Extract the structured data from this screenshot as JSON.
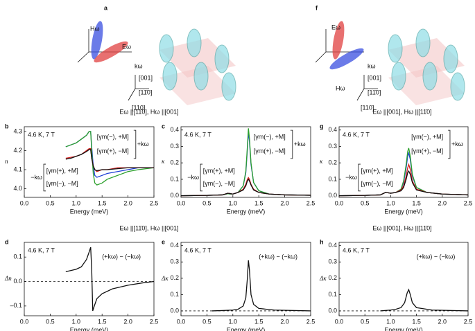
{
  "headers": [
    "Eω ||[11̄0], Hω ||[001]",
    "Eω ||[001], Hω ||[11̄0]",
    "Eω ||[11̄0], Hω ||[001]",
    "Eω ||[001], Hω ||[11̄0]"
  ],
  "diagrams": [
    {
      "panel": "a",
      "labels": [
        "Hω",
        "Eω",
        "kω",
        "[001]",
        "[11̄0]",
        "[110]"
      ]
    },
    {
      "panel": "f",
      "labels": [
        "Eω",
        "Hω",
        "kω",
        "[001]",
        "[11̄0]",
        "[110]"
      ]
    }
  ],
  "chart_data": [
    {
      "type": "line",
      "panel": "b",
      "ylabel": "n",
      "xlabel": "Energy (meV)",
      "annotations": [
        "4.6 K, 7 T",
        "+kω",
        "−kω"
      ],
      "xlim": [
        0,
        2.5
      ],
      "ylim": [
        3.955,
        4.325
      ],
      "xticks": [
        {
          "value": 0,
          "label": "0.0"
        },
        0.5,
        {
          "value": 1,
          "label": "1.0"
        },
        1.5,
        {
          "value": 2,
          "label": "2.0"
        },
        2.5
      ],
      "yticks": [
        {
          "value": 4,
          "label": "4.0"
        },
        4.1,
        4.2,
        4.3
      ],
      "x": [
        0.8,
        0.9,
        1.0,
        1.1,
        1.2,
        1.25,
        1.28,
        1.3,
        1.33,
        1.36,
        1.4,
        1.5,
        1.6,
        1.8,
        2.0,
        2.2,
        2.5
      ],
      "series": [
        {
          "name": "[γm(−), +M]",
          "color": "#1f3fd6",
          "values": [
            4.22,
            4.23,
            4.24,
            4.26,
            4.28,
            4.3,
            4.3,
            4.22,
            4.12,
            4.07,
            4.06,
            4.07,
            4.08,
            4.09,
            4.1,
            4.11,
            4.11
          ]
        },
        {
          "name": "[γm(+), −M]",
          "color": "#2ca02c",
          "values": [
            4.22,
            4.23,
            4.24,
            4.26,
            4.28,
            4.3,
            4.3,
            4.2,
            4.08,
            4.03,
            4.02,
            4.03,
            4.05,
            4.07,
            4.09,
            4.1,
            4.11
          ]
        },
        {
          "name": "[γm(+), +M]",
          "color": "#d62020",
          "values": [
            4.16,
            4.165,
            4.17,
            4.18,
            4.2,
            4.21,
            4.21,
            4.16,
            4.12,
            4.1,
            4.09,
            4.1,
            4.1,
            4.11,
            4.11,
            4.11,
            4.11
          ]
        },
        {
          "name": "[γm(−), −M]",
          "color": "#111111",
          "values": [
            4.155,
            4.16,
            4.17,
            4.18,
            4.195,
            4.205,
            4.205,
            4.16,
            4.12,
            4.1,
            4.095,
            4.1,
            4.1,
            4.105,
            4.11,
            4.11,
            4.11
          ]
        }
      ]
    },
    {
      "type": "line",
      "panel": "c",
      "ylabel": "κ",
      "xlabel": "Energy (meV)",
      "annotations": [
        "4.6 K, 7 T",
        "+kω",
        "−kω"
      ],
      "xlim": [
        0,
        2.5
      ],
      "ylim": [
        -0.01,
        0.42
      ],
      "xticks": [
        {
          "value": 0,
          "label": "0.0"
        },
        0.5,
        {
          "value": 1,
          "label": "1.0"
        },
        1.5,
        {
          "value": 2,
          "label": "2.0"
        },
        2.5
      ],
      "yticks": [
        {
          "value": 0,
          "label": "0.0"
        },
        0.1,
        0.2,
        0.3,
        0.4
      ],
      "x": [
        0,
        0.5,
        0.8,
        0.9,
        0.95,
        1.0,
        1.1,
        1.2,
        1.25,
        1.28,
        1.3,
        1.32,
        1.35,
        1.4,
        1.5,
        1.7,
        2.0,
        2.5
      ],
      "series": [
        {
          "name": "[γm(−), +M]",
          "color": "#1f3fd6",
          "values": [
            0,
            0.002,
            0.005,
            0.012,
            0.01,
            0.01,
            0.02,
            0.06,
            0.14,
            0.28,
            0.39,
            0.33,
            0.19,
            0.08,
            0.03,
            0.01,
            0.005,
            0.003
          ]
        },
        {
          "name": "[γm(+), −M]",
          "color": "#2ca02c",
          "values": [
            0,
            0.002,
            0.005,
            0.012,
            0.01,
            0.01,
            0.02,
            0.06,
            0.15,
            0.3,
            0.41,
            0.35,
            0.2,
            0.08,
            0.03,
            0.01,
            0.005,
            0.003
          ]
        },
        {
          "name": "[γm(+), +M]",
          "color": "#d62020",
          "values": [
            0,
            0.002,
            0.005,
            0.015,
            0.013,
            0.01,
            0.02,
            0.04,
            0.07,
            0.1,
            0.11,
            0.1,
            0.07,
            0.04,
            0.02,
            0.01,
            0.005,
            0.003
          ]
        },
        {
          "name": "[γm(−), −M]",
          "color": "#111111",
          "values": [
            0,
            0.002,
            0.005,
            0.015,
            0.013,
            0.01,
            0.02,
            0.035,
            0.06,
            0.09,
            0.1,
            0.09,
            0.065,
            0.035,
            0.02,
            0.01,
            0.005,
            0.003
          ]
        }
      ]
    },
    {
      "type": "line",
      "panel": "g",
      "ylabel": "κ",
      "xlabel": "Energy (meV)",
      "annotations": [
        "4.6 K, 7 T",
        "+kω",
        "−kω"
      ],
      "xlim": [
        0,
        2.5
      ],
      "ylim": [
        -0.01,
        0.42
      ],
      "xticks": [
        {
          "value": 0,
          "label": "0.0"
        },
        0.5,
        {
          "value": 1,
          "label": "1.0"
        },
        1.5,
        {
          "value": 2,
          "label": "2.0"
        },
        2.5
      ],
      "yticks": [
        {
          "value": 0,
          "label": "0.0"
        },
        0.1,
        0.2,
        0.3,
        0.4
      ],
      "x": [
        0,
        0.5,
        0.8,
        0.9,
        0.95,
        1.0,
        1.1,
        1.2,
        1.25,
        1.3,
        1.33,
        1.35,
        1.38,
        1.42,
        1.5,
        1.7,
        2.0,
        2.5
      ],
      "series": [
        {
          "name": "[γm(−), +M]",
          "color": "#1f3fd6",
          "values": [
            0,
            0.002,
            0.005,
            0.02,
            0.018,
            0.015,
            0.02,
            0.04,
            0.08,
            0.17,
            0.24,
            0.26,
            0.22,
            0.12,
            0.05,
            0.02,
            0.01,
            0.005
          ]
        },
        {
          "name": "[γm(+), −M]",
          "color": "#2ca02c",
          "values": [
            0,
            0.002,
            0.005,
            0.02,
            0.018,
            0.015,
            0.02,
            0.04,
            0.09,
            0.19,
            0.27,
            0.29,
            0.24,
            0.13,
            0.05,
            0.02,
            0.01,
            0.005
          ]
        },
        {
          "name": "[γm(+), +M]",
          "color": "#d62020",
          "values": [
            0,
            0.002,
            0.005,
            0.02,
            0.018,
            0.015,
            0.02,
            0.035,
            0.06,
            0.12,
            0.17,
            0.19,
            0.16,
            0.09,
            0.04,
            0.02,
            0.01,
            0.005
          ]
        },
        {
          "name": "[γm(−), −M]",
          "color": "#111111",
          "values": [
            0,
            0.002,
            0.005,
            0.02,
            0.018,
            0.015,
            0.02,
            0.03,
            0.05,
            0.1,
            0.14,
            0.15,
            0.13,
            0.08,
            0.035,
            0.02,
            0.01,
            0.005
          ]
        }
      ]
    },
    {
      "type": "line",
      "panel": "d",
      "ylabel": "Δn",
      "xlabel": "Energy (meV)",
      "annotations": [
        "4.6 K, 7 T",
        "(+kω) − (−kω)"
      ],
      "xlim": [
        0,
        2.5
      ],
      "ylim": [
        -0.14,
        0.16
      ],
      "hline": 0,
      "xticks": [
        {
          "value": 0,
          "label": "0.0"
        },
        0.5,
        {
          "value": 1,
          "label": "1.0"
        },
        1.5,
        {
          "value": 2,
          "label": "2.0"
        },
        2.5
      ],
      "yticks": [
        {
          "value": -0.1,
          "label": "–0.1"
        },
        {
          "value": 0,
          "label": "0.0"
        },
        0.1
      ],
      "x": [
        0.8,
        0.9,
        1.0,
        1.1,
        1.2,
        1.25,
        1.28,
        1.3,
        1.32,
        1.35,
        1.4,
        1.5,
        1.7,
        2.0,
        2.3,
        2.5
      ],
      "series": [
        {
          "color": "#111111",
          "values": [
            0.04,
            0.045,
            0.05,
            0.06,
            0.09,
            0.12,
            0.14,
            0.05,
            -0.12,
            -0.1,
            -0.07,
            -0.05,
            -0.03,
            -0.015,
            -0.005,
            0
          ]
        }
      ]
    },
    {
      "type": "line",
      "panel": "e",
      "ylabel": "Δκ",
      "xlabel": "Energy (meV)",
      "annotations": [
        "4.6 K, 7 T",
        "(+kω) − (−kω)"
      ],
      "xlim": [
        0,
        2.5
      ],
      "ylim": [
        -0.03,
        0.42
      ],
      "hline": 0,
      "xticks": [
        {
          "value": 0,
          "label": "0.0"
        },
        0.5,
        {
          "value": 1,
          "label": "1.0"
        },
        1.5,
        {
          "value": 2,
          "label": "2.0"
        },
        2.5
      ],
      "yticks": [
        {
          "value": 0,
          "label": "0.0"
        },
        0.1,
        0.2,
        0.3,
        0.4
      ],
      "x": [
        0.6,
        0.8,
        1.0,
        1.1,
        1.2,
        1.25,
        1.28,
        1.3,
        1.32,
        1.35,
        1.4,
        1.5,
        1.8,
        2.5
      ],
      "series": [
        {
          "color": "#111111",
          "values": [
            0,
            0.002,
            0.005,
            0.01,
            0.03,
            0.08,
            0.2,
            0.31,
            0.25,
            0.1,
            0.04,
            0.015,
            0.005,
            0
          ]
        }
      ]
    },
    {
      "type": "line",
      "panel": "h",
      "ylabel": "Δκ",
      "xlabel": "Energy (meV)",
      "annotations": [
        "4.6 K, 7 T",
        "(+kω) − (−kω)"
      ],
      "xlim": [
        0,
        2.5
      ],
      "ylim": [
        -0.03,
        0.42
      ],
      "hline": 0,
      "xticks": [
        {
          "value": 0,
          "label": "0.0"
        },
        0.5,
        {
          "value": 1,
          "label": "1.0"
        },
        1.5,
        {
          "value": 2,
          "label": "2.0"
        },
        2.5
      ],
      "yticks": [
        {
          "value": 0,
          "label": "0.0"
        },
        0.1,
        0.2,
        0.3,
        0.4
      ],
      "x": [
        0.8,
        1.0,
        1.1,
        1.2,
        1.27,
        1.32,
        1.35,
        1.38,
        1.42,
        1.5,
        1.8,
        2.5
      ],
      "series": [
        {
          "color": "#111111",
          "values": [
            0,
            0.005,
            0.01,
            0.02,
            0.05,
            0.11,
            0.13,
            0.1,
            0.05,
            0.02,
            0.005,
            0
          ]
        }
      ]
    }
  ]
}
